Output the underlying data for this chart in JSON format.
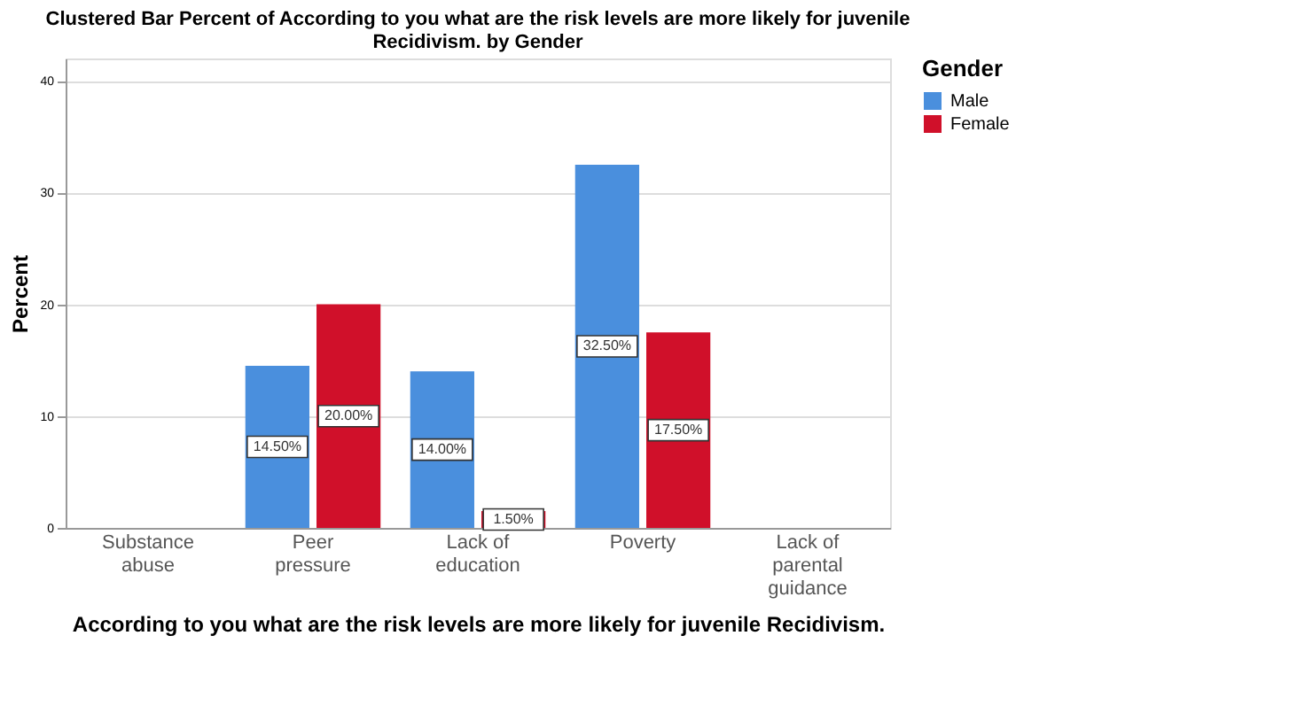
{
  "chart_data": {
    "type": "bar",
    "title": "Clustered Bar Percent of According to you what are the risk levels are more likely for juvenile Recidivism. by Gender",
    "xlabel": "According to you what are the risk levels are more likely for juvenile Recidivism.",
    "ylabel": "Percent",
    "legend_title": "Gender",
    "categories": [
      "Substance abuse",
      "Peer pressure",
      "Lack of education",
      "Poverty",
      "Lack of parental guidance"
    ],
    "series": [
      {
        "name": "Male",
        "color": "#4a8fdd",
        "values": [
          null,
          14.5,
          14.0,
          32.5,
          null
        ],
        "value_labels": [
          null,
          "14.50%",
          "14.00%",
          "32.50%",
          null
        ]
      },
      {
        "name": "Female",
        "color": "#d0102a",
        "values": [
          null,
          20.0,
          1.5,
          17.5,
          null
        ],
        "value_labels": [
          null,
          "20.00%",
          "1.50%",
          "17.50%",
          null
        ]
      }
    ],
    "ylim": [
      0,
      42
    ],
    "yticks": [
      0,
      10,
      20,
      30,
      40
    ],
    "grid": "y",
    "legend": "top right"
  }
}
